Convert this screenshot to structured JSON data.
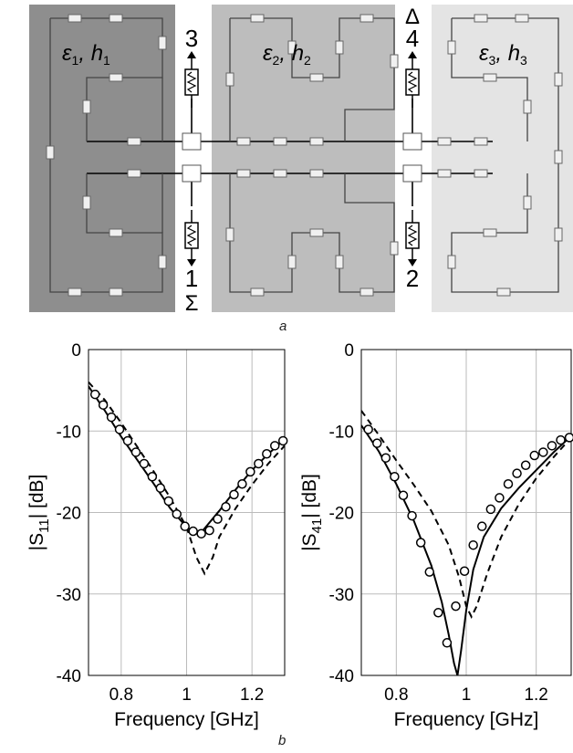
{
  "panel_a": {
    "caption": "a",
    "regions": [
      {
        "eps": "ε",
        "eps_sub": "1",
        "h": "h",
        "h_sub": "1",
        "color": "#8e8e8e"
      },
      {
        "eps": "ε",
        "eps_sub": "2",
        "h": "h",
        "h_sub": "2",
        "color": "#bdbdbd"
      },
      {
        "eps": "ε",
        "eps_sub": "3",
        "h": "h",
        "h_sub": "3",
        "color": "#e4e4e4"
      }
    ],
    "ports": [
      {
        "number": "3",
        "symbol": ""
      },
      {
        "number": "4",
        "symbol": "Δ"
      },
      {
        "number": "1",
        "symbol": "Σ"
      },
      {
        "number": "2",
        "symbol": ""
      }
    ]
  },
  "panel_b": {
    "caption": "b"
  },
  "chart_data": [
    {
      "type": "line",
      "xlabel": "Frequency [GHz]",
      "ylabel_main": "|S",
      "ylabel_sub": "11",
      "ylabel_unit": "| [dB]",
      "xlim": [
        0.7,
        1.3
      ],
      "ylim": [
        -40,
        0
      ],
      "xticks": [
        0.8,
        1,
        1.2
      ],
      "xtick_labels": [
        "0.8",
        "1",
        "1.2"
      ],
      "yticks": [
        0,
        -10,
        -20,
        -30,
        -40
      ],
      "ytick_labels": [
        "0",
        "-10",
        "-20",
        "-30",
        "-40"
      ],
      "grid": true,
      "series": [
        {
          "style": "solid",
          "x": [
            0.7,
            0.75,
            0.8,
            0.85,
            0.9,
            0.95,
            1.0,
            1.025,
            1.05,
            1.1,
            1.15,
            1.2,
            1.25,
            1.3
          ],
          "y": [
            -4.5,
            -7.5,
            -10.7,
            -13.6,
            -16.5,
            -19.5,
            -21.8,
            -22.5,
            -22.2,
            -19.8,
            -17.2,
            -14.8,
            -12.8,
            -11.0
          ]
        },
        {
          "style": "dashed",
          "x": [
            0.7,
            0.75,
            0.8,
            0.85,
            0.9,
            0.95,
            1.0,
            1.03,
            1.055,
            1.08,
            1.1,
            1.15,
            1.2,
            1.25,
            1.3
          ],
          "y": [
            -4.0,
            -6.2,
            -9.0,
            -12.0,
            -15.0,
            -18.2,
            -21.8,
            -25.5,
            -27.5,
            -25.5,
            -23.0,
            -19.5,
            -16.6,
            -14.0,
            -11.8
          ]
        },
        {
          "style": "circle",
          "x": [
            0.72,
            0.745,
            0.77,
            0.795,
            0.82,
            0.845,
            0.87,
            0.895,
            0.92,
            0.945,
            0.97,
            0.995,
            1.02,
            1.045,
            1.07,
            1.095,
            1.12,
            1.145,
            1.17,
            1.195,
            1.22,
            1.245,
            1.27,
            1.295
          ],
          "y": [
            -5.5,
            -6.8,
            -8.3,
            -9.8,
            -11.2,
            -12.6,
            -14.0,
            -15.6,
            -17.0,
            -18.6,
            -20.2,
            -21.7,
            -22.3,
            -22.6,
            -22.2,
            -20.8,
            -19.3,
            -17.8,
            -16.5,
            -15.0,
            -14.0,
            -12.8,
            -11.8,
            -11.2
          ]
        }
      ]
    },
    {
      "type": "line",
      "xlabel": "Frequency [GHz]",
      "ylabel_main": "|S",
      "ylabel_sub": "41",
      "ylabel_unit": "| [dB]",
      "xlim": [
        0.7,
        1.3
      ],
      "ylim": [
        -40,
        0
      ],
      "xticks": [
        0.8,
        1,
        1.2
      ],
      "xtick_labels": [
        "0.8",
        "1",
        "1.2"
      ],
      "yticks": [
        0,
        -10,
        -20,
        -30,
        -40
      ],
      "ytick_labels": [
        "0",
        "-10",
        "-20",
        "-30",
        "-40"
      ],
      "grid": true,
      "series": [
        {
          "style": "solid",
          "x": [
            0.7,
            0.75,
            0.8,
            0.85,
            0.9,
            0.93,
            0.95,
            0.965,
            0.975,
            0.985,
            1.0,
            1.02,
            1.05,
            1.1,
            1.15,
            1.2,
            1.25,
            1.3
          ],
          "y": [
            -9.3,
            -12.5,
            -16.5,
            -21.0,
            -26.5,
            -31.0,
            -35.0,
            -38.5,
            -40.0,
            -37.0,
            -32.0,
            -27.0,
            -23.0,
            -19.5,
            -17.0,
            -14.8,
            -12.6,
            -10.6
          ]
        },
        {
          "style": "dashed",
          "x": [
            0.7,
            0.75,
            0.8,
            0.85,
            0.9,
            0.95,
            0.98,
            1.0,
            1.015,
            1.03,
            1.06,
            1.1,
            1.15,
            1.2,
            1.25,
            1.3
          ],
          "y": [
            -7.5,
            -10.5,
            -13.6,
            -16.6,
            -19.8,
            -24.0,
            -28.0,
            -31.5,
            -32.8,
            -31.5,
            -27.5,
            -23.0,
            -19.0,
            -15.8,
            -13.2,
            -10.8
          ]
        },
        {
          "style": "circle",
          "x": [
            0.72,
            0.745,
            0.77,
            0.795,
            0.82,
            0.845,
            0.87,
            0.895,
            0.92,
            0.945,
            0.97,
            0.995,
            1.02,
            1.045,
            1.07,
            1.095,
            1.12,
            1.145,
            1.17,
            1.195,
            1.22,
            1.245,
            1.27,
            1.295
          ],
          "y": [
            -9.8,
            -11.5,
            -13.3,
            -15.6,
            -17.9,
            -20.4,
            -23.7,
            -27.3,
            -32.3,
            -36.0,
            -31.5,
            -27.2,
            -24.0,
            -21.7,
            -19.6,
            -18.2,
            -16.5,
            -15.2,
            -14.2,
            -13.0,
            -12.6,
            -11.8,
            -11.1,
            -10.8
          ]
        }
      ]
    }
  ]
}
